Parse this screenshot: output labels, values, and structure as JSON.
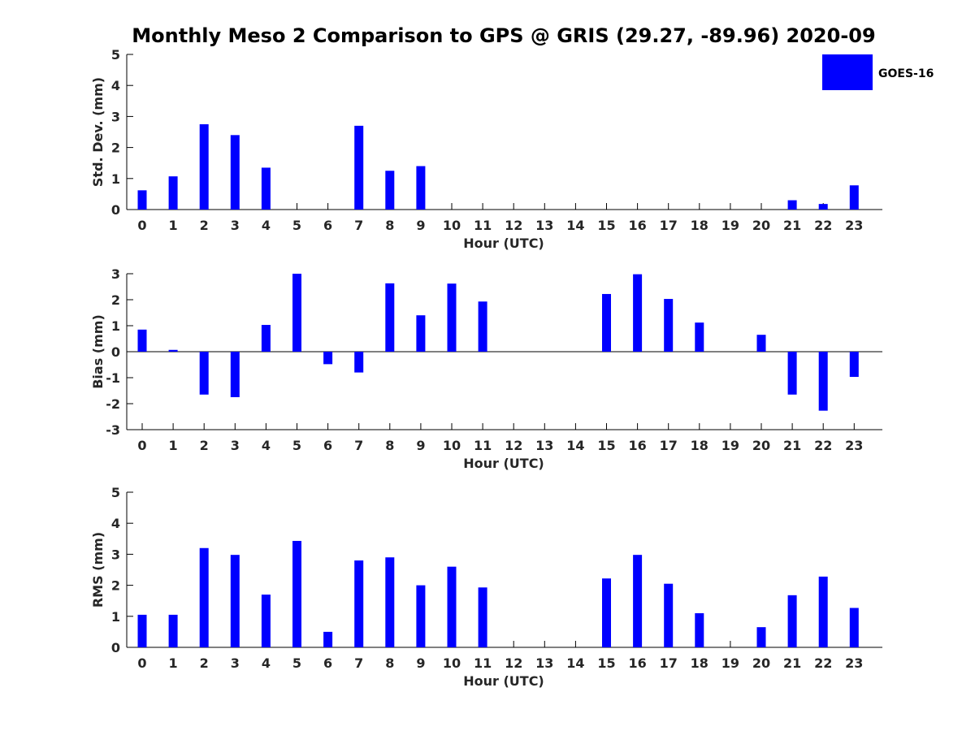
{
  "title": "Monthly Meso 2 Comparison to GPS @ GRIS (29.27, -89.96) 2020-09",
  "legend": {
    "label": "GOES-16",
    "color": "#0000ff",
    "placement": "top-right"
  },
  "chart_data": [
    {
      "type": "bar",
      "xlabel": "Hour (UTC)",
      "ylabel": "Std. Dev. (mm)",
      "ylim": [
        0,
        5
      ],
      "yticks": [
        0,
        1,
        2,
        3,
        4,
        5
      ],
      "categories": [
        "0",
        "1",
        "2",
        "3",
        "4",
        "5",
        "6",
        "7",
        "8",
        "9",
        "10",
        "11",
        "12",
        "13",
        "14",
        "15",
        "16",
        "17",
        "18",
        "19",
        "20",
        "21",
        "22",
        "23"
      ],
      "values": [
        0.62,
        1.07,
        2.75,
        2.4,
        1.35,
        0,
        0,
        2.7,
        1.25,
        1.4,
        0,
        0,
        0,
        0,
        0,
        0,
        0,
        0,
        0,
        0,
        0,
        0.3,
        0.18,
        0.78
      ],
      "series": [
        {
          "name": "GOES-16"
        }
      ],
      "grid": false
    },
    {
      "type": "bar",
      "xlabel": "Hour (UTC)",
      "ylabel": "Bias (mm)",
      "ylim": [
        -3,
        3
      ],
      "yticks": [
        -3,
        -2,
        -1,
        0,
        1,
        2,
        3
      ],
      "categories": [
        "0",
        "1",
        "2",
        "3",
        "4",
        "5",
        "6",
        "7",
        "8",
        "9",
        "10",
        "11",
        "12",
        "13",
        "14",
        "15",
        "16",
        "17",
        "18",
        "19",
        "20",
        "21",
        "22",
        "23"
      ],
      "values": [
        0.85,
        0.07,
        -1.65,
        -1.75,
        1.03,
        3.0,
        -0.48,
        -0.8,
        2.63,
        1.4,
        2.62,
        1.93,
        0,
        0,
        0,
        2.22,
        2.98,
        2.03,
        1.12,
        0,
        0.65,
        -1.65,
        -2.27,
        -0.97
      ],
      "series": [
        {
          "name": "GOES-16"
        }
      ],
      "grid": false
    },
    {
      "type": "bar",
      "xlabel": "Hour (UTC)",
      "ylabel": "RMS (mm)",
      "ylim": [
        0,
        5
      ],
      "yticks": [
        0,
        1,
        2,
        3,
        4,
        5
      ],
      "categories": [
        "0",
        "1",
        "2",
        "3",
        "4",
        "5",
        "6",
        "7",
        "8",
        "9",
        "10",
        "11",
        "12",
        "13",
        "14",
        "15",
        "16",
        "17",
        "18",
        "19",
        "20",
        "21",
        "22",
        "23"
      ],
      "values": [
        1.05,
        1.05,
        3.2,
        2.98,
        1.7,
        3.43,
        0.5,
        2.8,
        2.9,
        2.0,
        2.6,
        1.93,
        0,
        0,
        0,
        2.22,
        2.98,
        2.05,
        1.1,
        0,
        0.65,
        1.68,
        2.28,
        1.27
      ],
      "series": [
        {
          "name": "GOES-16"
        }
      ],
      "grid": false
    }
  ]
}
